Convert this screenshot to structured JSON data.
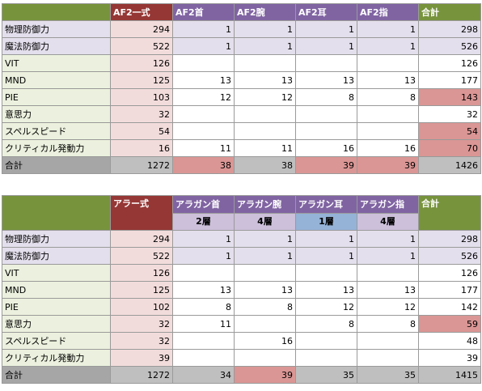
{
  "table1": {
    "headers": [
      "",
      "AF2一式",
      "AF2首",
      "AF2腕",
      "AF2耳",
      "AF2指",
      "合計"
    ],
    "rows": [
      {
        "label": "物理防御力",
        "vals": [
          "294",
          "1",
          "1",
          "1",
          "1",
          "298"
        ]
      },
      {
        "label": "魔法防御力",
        "vals": [
          "522",
          "1",
          "1",
          "1",
          "1",
          "526"
        ]
      },
      {
        "label": "VIT",
        "vals": [
          "126",
          "",
          "",
          "",
          "",
          "126"
        ]
      },
      {
        "label": "MND",
        "vals": [
          "125",
          "13",
          "13",
          "13",
          "13",
          "177"
        ]
      },
      {
        "label": "PIE",
        "vals": [
          "103",
          "12",
          "12",
          "8",
          "8",
          "143"
        ]
      },
      {
        "label": "意思力",
        "vals": [
          "32",
          "",
          "",
          "",
          "",
          "32"
        ]
      },
      {
        "label": "スペルスピード",
        "vals": [
          "54",
          "",
          "",
          "",
          "",
          "54"
        ]
      },
      {
        "label": "クリティカル発動力",
        "vals": [
          "16",
          "11",
          "11",
          "16",
          "16",
          "70"
        ]
      }
    ],
    "total": {
      "label": "合計",
      "vals": [
        "1272",
        "38",
        "38",
        "39",
        "39",
        "1426"
      ]
    }
  },
  "table2": {
    "headers": [
      "",
      "アラー式",
      "アラガン首",
      "アラガン腕",
      "アラガン耳",
      "アラガン指",
      "合計"
    ],
    "subheaders": [
      "",
      "",
      "2層",
      "4層",
      "1層",
      "4層",
      ""
    ],
    "rows": [
      {
        "label": "物理防御力",
        "vals": [
          "294",
          "1",
          "1",
          "1",
          "1",
          "298"
        ]
      },
      {
        "label": "魔法防御力",
        "vals": [
          "522",
          "1",
          "1",
          "1",
          "1",
          "526"
        ]
      },
      {
        "label": "VIT",
        "vals": [
          "126",
          "",
          "",
          "",
          "",
          "126"
        ]
      },
      {
        "label": "MND",
        "vals": [
          "125",
          "13",
          "13",
          "13",
          "13",
          "177"
        ]
      },
      {
        "label": "PIE",
        "vals": [
          "102",
          "8",
          "8",
          "12",
          "12",
          "142"
        ]
      },
      {
        "label": "意思力",
        "vals": [
          "32",
          "11",
          "",
          "8",
          "8",
          "59"
        ]
      },
      {
        "label": "スペルスピード",
        "vals": [
          "32",
          "",
          "16",
          "",
          "",
          "48"
        ]
      },
      {
        "label": "クリティカル発動力",
        "vals": [
          "39",
          "",
          "",
          "",
          "",
          "39"
        ]
      }
    ],
    "total": {
      "label": "合計",
      "vals": [
        "1272",
        "34",
        "39",
        "35",
        "35",
        "1415"
      ]
    }
  },
  "colors": {
    "header_green": "#77933c",
    "header_red": "#953735",
    "header_purple": "#8064a2",
    "highlight": "#da9694",
    "pink": "#f2dcdb"
  }
}
